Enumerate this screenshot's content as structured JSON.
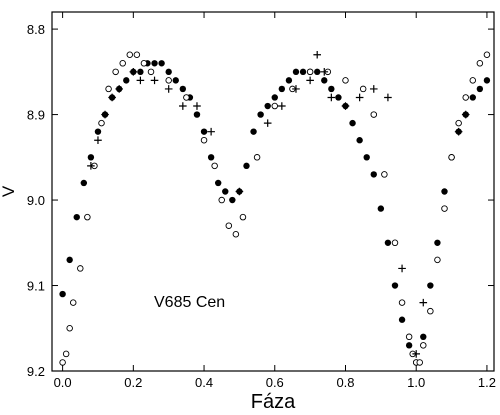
{
  "chart_data": {
    "type": "scatter",
    "xlabel": "Fáza",
    "ylabel": "V",
    "annotation": "V685 Cen",
    "xlim": [
      -0.03,
      1.22
    ],
    "ylim": [
      9.2,
      8.78
    ],
    "y_inverted": true,
    "grid": false,
    "x_ticks": [
      0.0,
      0.2,
      0.4,
      0.6,
      0.8,
      1.0,
      1.2
    ],
    "x_tick_labels": [
      "0.0",
      "0.2",
      "0.4",
      "0.6",
      "0.8",
      "1.0",
      "1.2"
    ],
    "y_ticks": [
      8.8,
      8.9,
      9.0,
      9.1,
      9.2
    ],
    "y_tick_labels": [
      "8.8",
      "8.9",
      "9.0",
      "9.1",
      "9.2"
    ],
    "marker_color": "#000000",
    "series": [
      {
        "marker": "filled-circle",
        "x": [
          0.0,
          0.02,
          0.04,
          0.06,
          0.08,
          0.1,
          0.12,
          0.14,
          0.16,
          0.18,
          0.2,
          0.22,
          0.24,
          0.26,
          0.28,
          0.3,
          0.32,
          0.34,
          0.36,
          0.38,
          0.4,
          0.42,
          0.44,
          0.46,
          0.48,
          0.5,
          0.52,
          0.54,
          0.56,
          0.58,
          0.6,
          0.62,
          0.64,
          0.66,
          0.68,
          0.7,
          0.72,
          0.74,
          0.76,
          0.78,
          0.8,
          0.82,
          0.84,
          0.86,
          0.88,
          0.9,
          0.92,
          0.94,
          0.96,
          0.98,
          1.0,
          1.02,
          1.04,
          1.06,
          1.08,
          1.1,
          1.12,
          1.14,
          1.16,
          1.18,
          1.2
        ],
        "y": [
          9.11,
          9.07,
          9.02,
          8.98,
          8.95,
          8.92,
          8.9,
          8.88,
          8.87,
          8.86,
          8.85,
          8.85,
          8.84,
          8.84,
          8.84,
          8.85,
          8.86,
          8.87,
          8.88,
          8.9,
          8.92,
          8.95,
          8.98,
          8.99,
          9.0,
          8.99,
          8.96,
          8.92,
          8.9,
          8.89,
          8.88,
          8.87,
          8.86,
          8.85,
          8.85,
          8.85,
          8.85,
          8.86,
          8.87,
          8.88,
          8.89,
          8.91,
          8.93,
          8.95,
          8.97,
          9.01,
          9.05,
          9.1,
          9.14,
          9.17,
          9.19,
          9.16,
          9.1,
          9.05,
          8.99,
          8.95,
          8.92,
          8.9,
          8.88,
          8.87,
          8.86
        ]
      },
      {
        "marker": "open-circle",
        "x": [
          0.0,
          0.01,
          0.02,
          0.03,
          0.05,
          0.07,
          0.09,
          0.11,
          0.13,
          0.15,
          0.17,
          0.19,
          0.21,
          0.23,
          0.25,
          0.3,
          0.35,
          0.4,
          0.43,
          0.45,
          0.47,
          0.49,
          0.51,
          0.55,
          0.6,
          0.65,
          0.7,
          0.75,
          0.8,
          0.85,
          0.88,
          0.91,
          0.94,
          0.96,
          0.98,
          0.99,
          1.0,
          1.01,
          1.02,
          1.04,
          1.06,
          1.08,
          1.1,
          1.12,
          1.14,
          1.16,
          1.18,
          1.2
        ],
        "y": [
          9.19,
          9.18,
          9.15,
          9.12,
          9.08,
          9.02,
          8.96,
          8.91,
          8.87,
          8.85,
          8.84,
          8.83,
          8.83,
          8.84,
          8.85,
          8.86,
          8.88,
          8.93,
          8.96,
          9.0,
          9.03,
          9.04,
          9.02,
          8.95,
          8.89,
          8.87,
          8.85,
          8.85,
          8.86,
          8.87,
          8.9,
          8.97,
          9.05,
          9.12,
          9.16,
          9.18,
          9.19,
          9.19,
          9.17,
          9.13,
          9.07,
          9.01,
          8.95,
          8.91,
          8.88,
          8.86,
          8.84,
          8.83
        ]
      },
      {
        "marker": "plus",
        "x": [
          0.08,
          0.1,
          0.12,
          0.14,
          0.16,
          0.2,
          0.22,
          0.26,
          0.3,
          0.34,
          0.38,
          0.42,
          0.5,
          0.58,
          0.62,
          0.66,
          0.7,
          0.72,
          0.74,
          0.76,
          0.8,
          0.84,
          0.88,
          0.92,
          0.96,
          1.0,
          1.02,
          1.12,
          1.14
        ],
        "y": [
          8.96,
          8.93,
          8.9,
          8.88,
          8.87,
          8.85,
          8.86,
          8.86,
          8.87,
          8.89,
          8.89,
          8.92,
          8.99,
          8.91,
          8.89,
          8.87,
          8.86,
          8.83,
          8.85,
          8.88,
          8.89,
          8.88,
          8.87,
          8.88,
          9.08,
          9.18,
          9.12,
          8.92,
          8.9
        ]
      }
    ]
  }
}
